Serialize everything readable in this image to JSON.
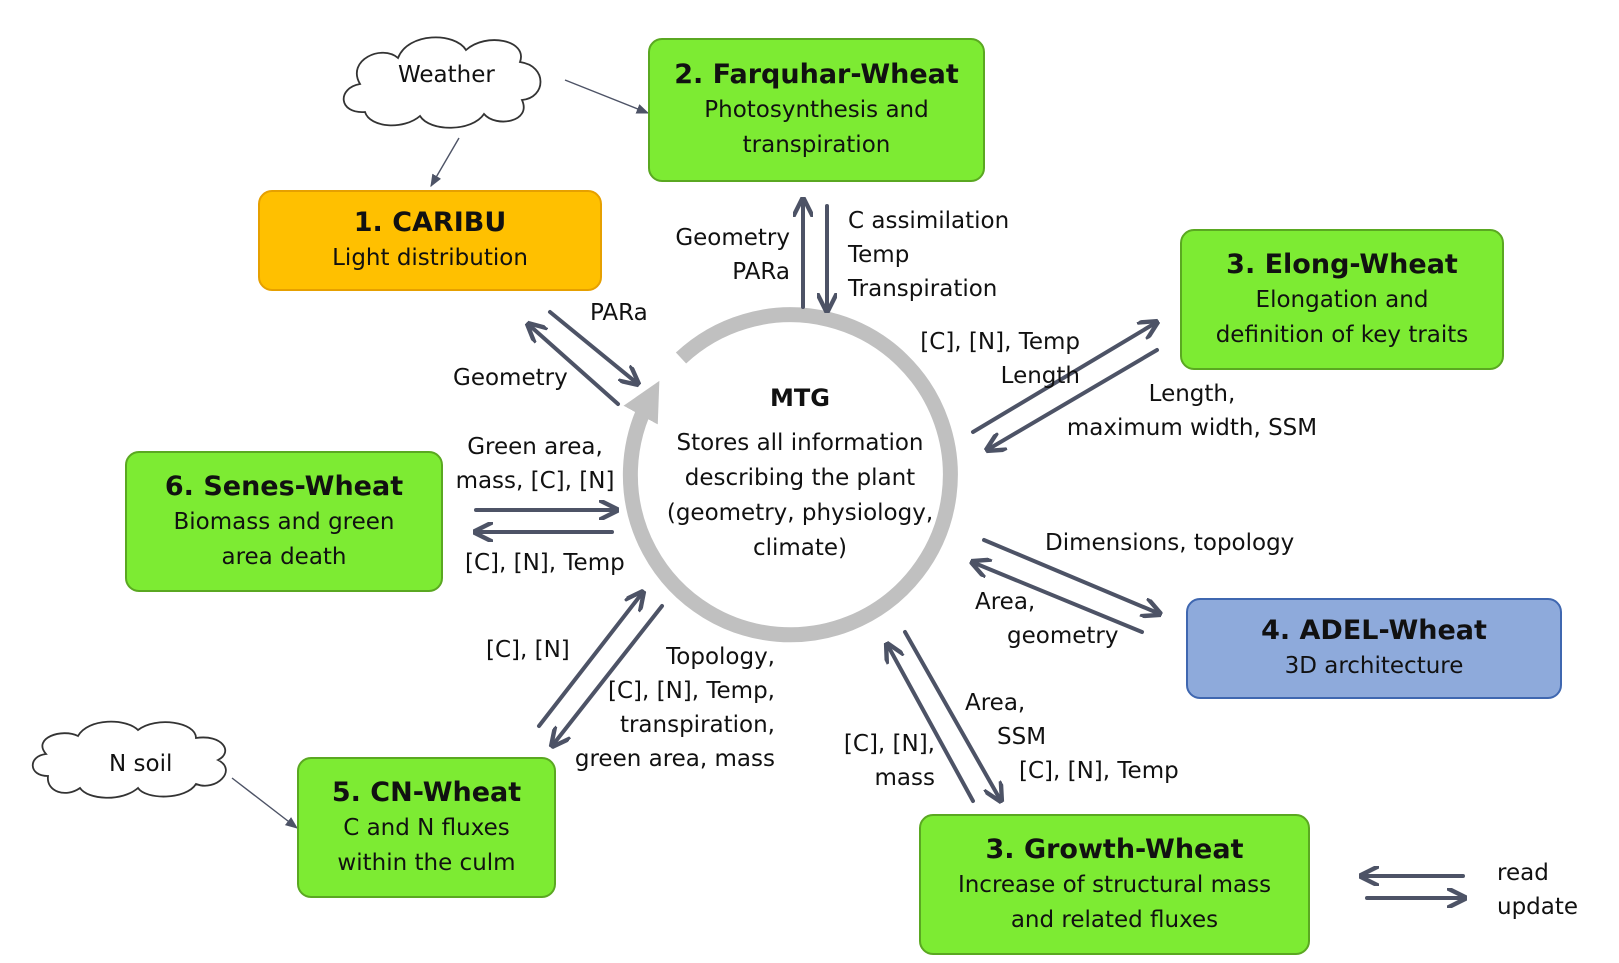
{
  "modules": {
    "caribu": {
      "title": "1. CARIBU",
      "sub": [
        "Light distribution"
      ]
    },
    "farquhar": {
      "title": "2. Farquhar-Wheat",
      "sub": [
        "Photosynthesis and",
        "transpiration"
      ]
    },
    "elong": {
      "title": "3. Elong-Wheat",
      "sub": [
        "Elongation and",
        "definition of key traits"
      ]
    },
    "adel": {
      "title": "4. ADEL-Wheat",
      "sub": [
        "3D architecture"
      ]
    },
    "growth": {
      "title": "3. Growth-Wheat",
      "sub": [
        "Increase of structural mass",
        "and related fluxes"
      ]
    },
    "cn": {
      "title": "5. CN-Wheat",
      "sub": [
        "C and N fluxes",
        "within the culm"
      ]
    },
    "senes": {
      "title": "6. Senes-Wheat",
      "sub": [
        "Biomass and green",
        "area death"
      ]
    }
  },
  "clouds": {
    "weather": "Weather",
    "nsoil": "N soil"
  },
  "mtg": {
    "title": "MTG",
    "desc": [
      "Stores all information",
      "describing the plant",
      "(geometry, physiology,",
      "climate)"
    ]
  },
  "labels": {
    "farquhar_read": [
      "Geometry",
      "PARa"
    ],
    "farquhar_update": [
      "C assimilation",
      "Temp",
      "Transpiration"
    ],
    "caribu_read": "Geometry",
    "caribu_update": "PARa",
    "elong_read": [
      "[C], [N], Temp",
      "Length"
    ],
    "elong_update": [
      "Length,",
      "maximum width, SSM"
    ],
    "senes_read": [
      "Green area,",
      "mass, [C], [N]"
    ],
    "senes_update": "[C], [N], Temp",
    "adel_read": "Dimensions, topology",
    "adel_update": [
      "Area,",
      "geometry"
    ],
    "cn_update": "[C], [N]",
    "cn_read": [
      "Topology,",
      "[C], [N], Temp,",
      "transpiration,",
      "green area, mass"
    ],
    "growth_update": [
      "[C], [N],",
      "mass"
    ],
    "growth_read": [
      "Area,",
      "SSM",
      "[C], [N], Temp"
    ]
  },
  "legend": {
    "read": "read",
    "update": "update"
  },
  "colors": {
    "arrow": "#4d5366",
    "ring": "#c0c0c0",
    "green": "#7deb33",
    "orange": "#ffc000",
    "blue": "#8eaadb"
  }
}
